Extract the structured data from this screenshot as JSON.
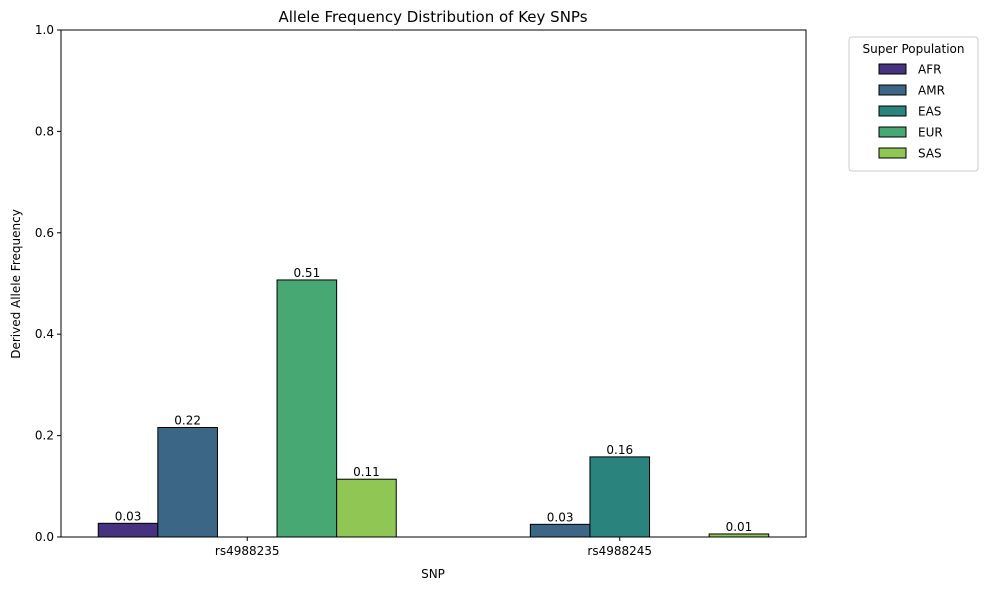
{
  "chart_data": {
    "type": "bar",
    "title": "Allele Frequency Distribution of Key SNPs",
    "xlabel": "SNP",
    "ylabel": "Derived Allele Frequency",
    "categories": [
      "rs4988235",
      "rs4988245"
    ],
    "ylim": [
      0,
      1.0
    ],
    "yticks": [
      "0.0",
      "0.2",
      "0.4",
      "0.6",
      "0.8",
      "1.0"
    ],
    "grid": false,
    "legend": {
      "title": "Super Population",
      "placement": "outside-top-right"
    },
    "series": [
      {
        "name": "AFR",
        "color": "#46327e",
        "values": [
          0.027,
          0.0
        ],
        "labels": [
          "0.03",
          ""
        ]
      },
      {
        "name": "AMR",
        "color": "#3b6685",
        "values": [
          0.216,
          0.025
        ],
        "labels": [
          "0.22",
          "0.03"
        ]
      },
      {
        "name": "EAS",
        "color": "#2a837d",
        "values": [
          0.0,
          0.158
        ],
        "labels": [
          "",
          "0.16"
        ]
      },
      {
        "name": "EUR",
        "color": "#47a874",
        "values": [
          0.507,
          0.0
        ],
        "labels": [
          "0.51",
          ""
        ]
      },
      {
        "name": "SAS",
        "color": "#8fc654",
        "values": [
          0.114,
          0.006
        ],
        "labels": [
          "0.11",
          "0.01"
        ]
      }
    ]
  }
}
